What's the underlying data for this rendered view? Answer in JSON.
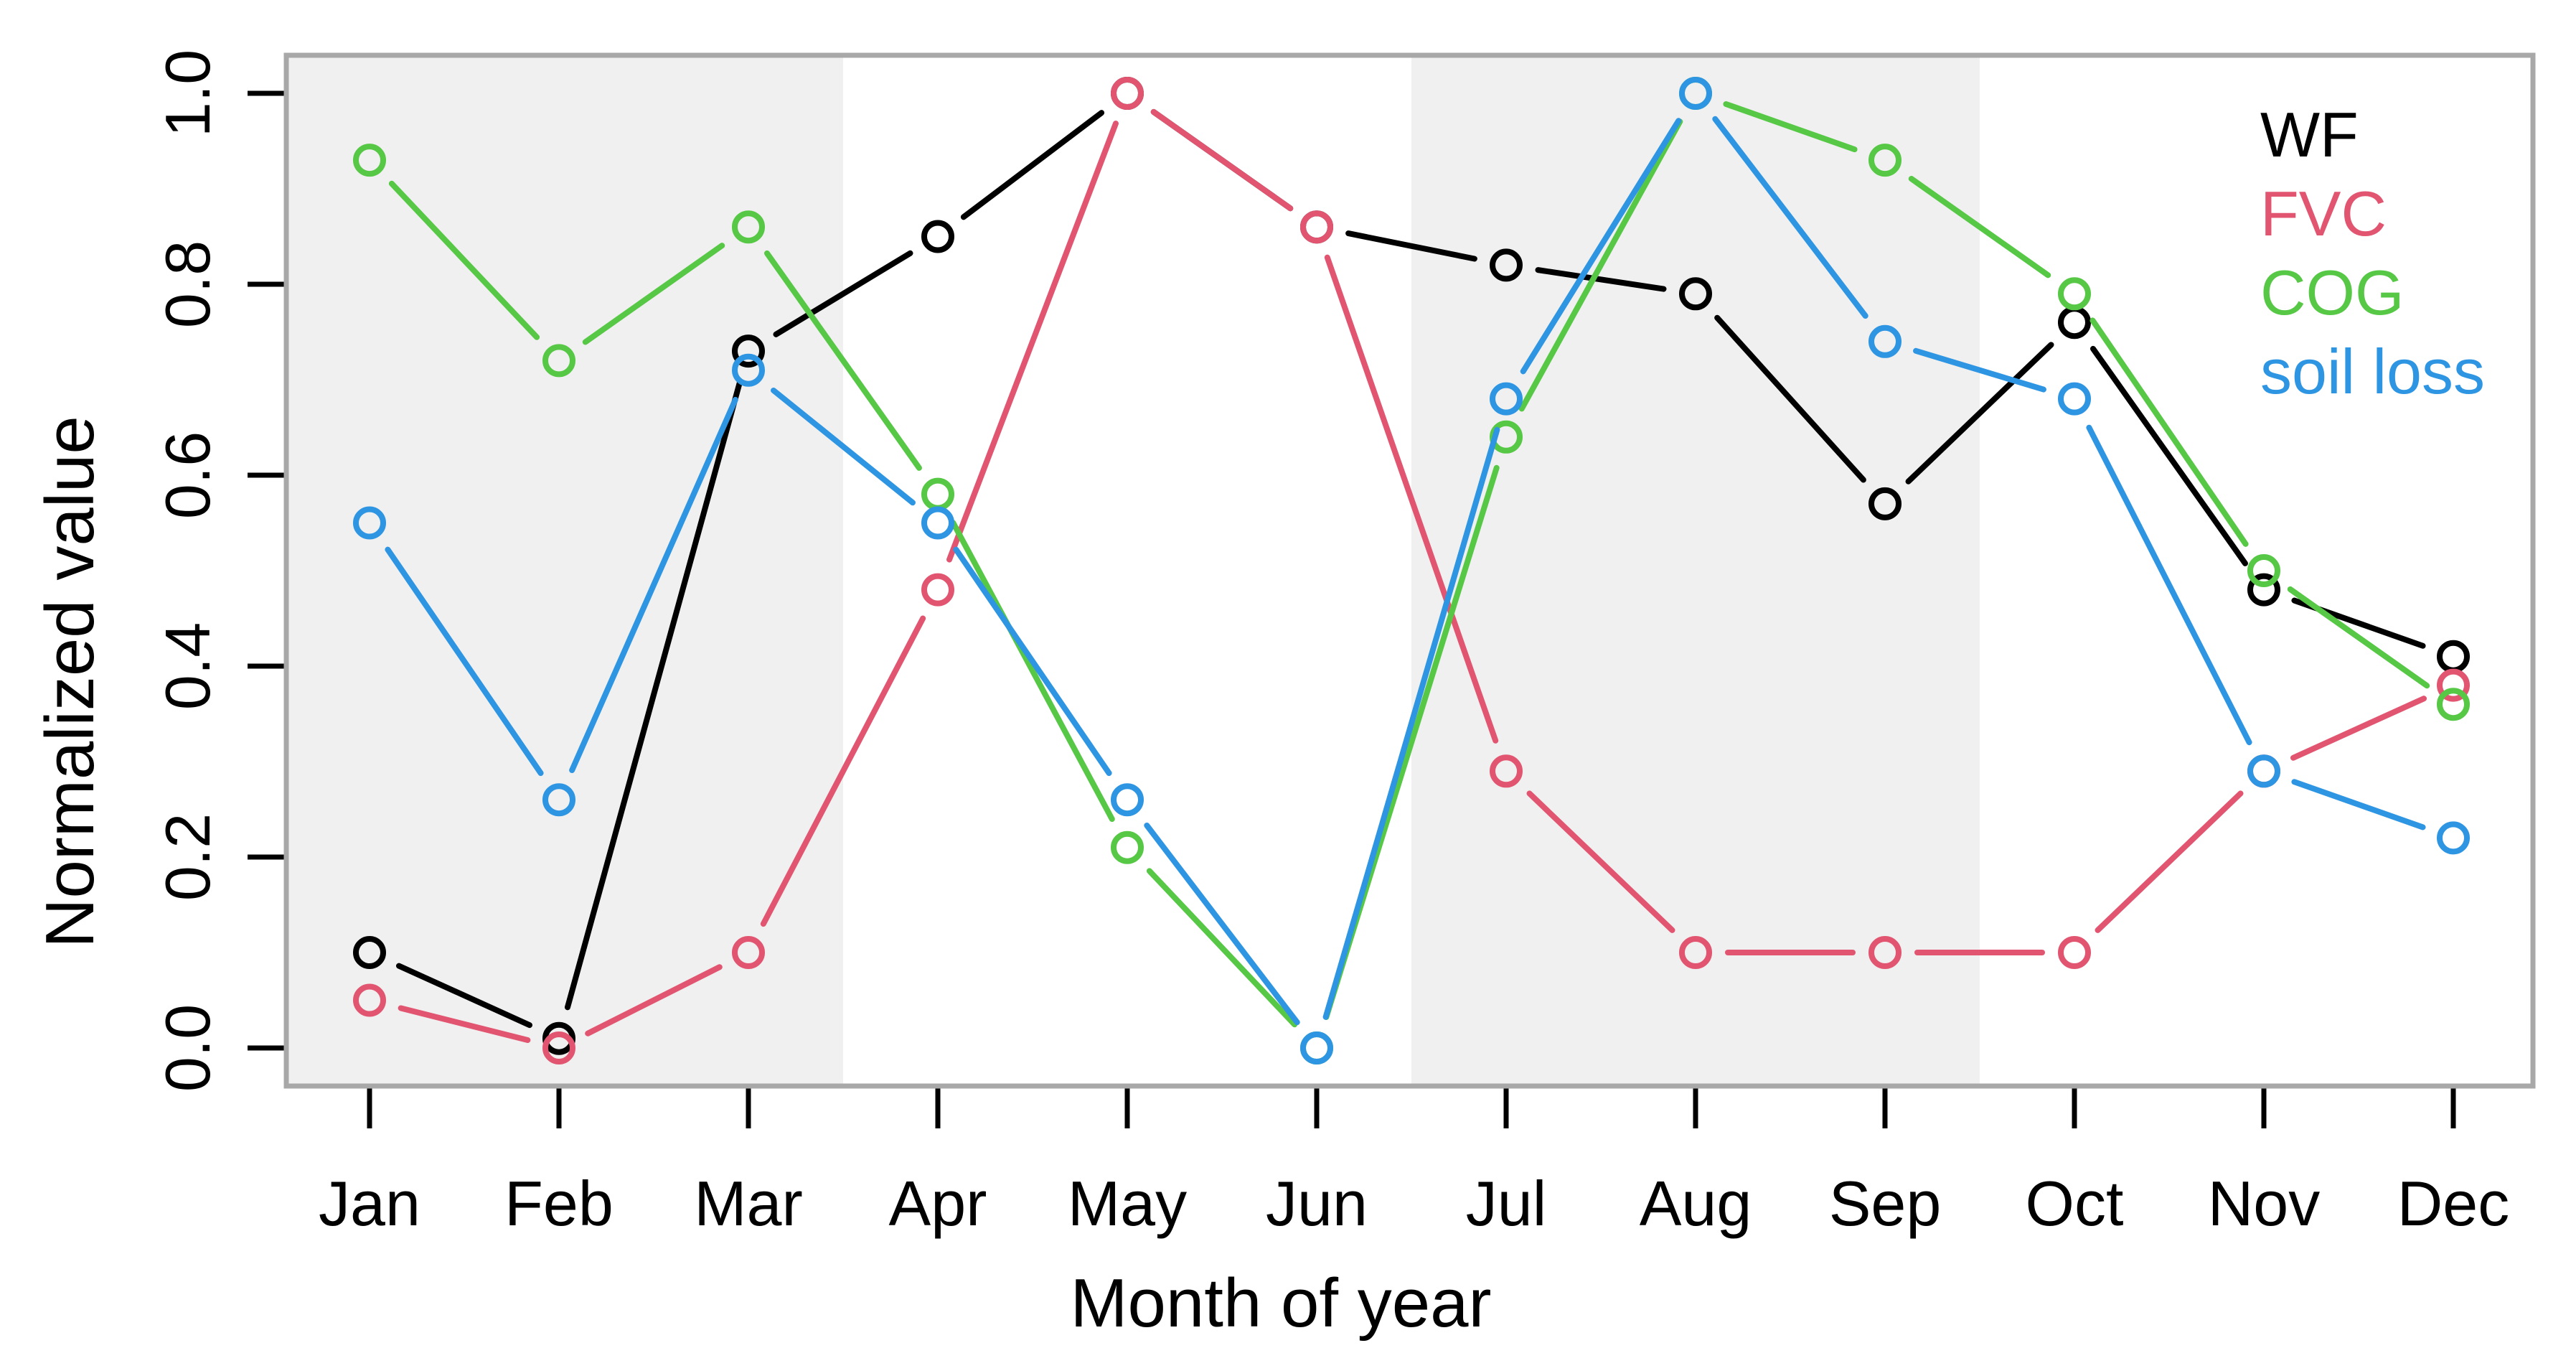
{
  "figure": {
    "background_color": "#ffffff"
  },
  "chart_data": {
    "type": "line",
    "title": "",
    "xlabel": "Month of year",
    "ylabel": "Normalized value",
    "categories": [
      "Jan",
      "Feb",
      "Mar",
      "Apr",
      "May",
      "Jun",
      "Jul",
      "Aug",
      "Sep",
      "Oct",
      "Nov",
      "Dec"
    ],
    "ylim": [
      0.0,
      1.0
    ],
    "yticks": [
      0.0,
      0.2,
      0.4,
      0.6,
      0.8,
      1.0
    ],
    "ytick_labels": [
      "0.0",
      "0.2",
      "0.4",
      "0.6",
      "0.8",
      "1.0"
    ],
    "grid": false,
    "legend_position": "top-right-inside",
    "marker": "open-circle",
    "frame_color": "#a8a8a8",
    "tick_color": "#000000",
    "shaded_band_color": "#f0f0f0",
    "shaded_bands_month_units": [
      {
        "from": 0.56,
        "to": 3.5
      },
      {
        "from": 6.5,
        "to": 9.5
      }
    ],
    "series": [
      {
        "name": "WF",
        "color": "#000000",
        "values": [
          0.1,
          0.01,
          0.73,
          0.85,
          1.0,
          0.86,
          0.82,
          0.79,
          0.57,
          0.76,
          0.48,
          0.41
        ]
      },
      {
        "name": "FVC",
        "color": "#e25570",
        "values": [
          0.05,
          0.0,
          0.1,
          0.48,
          1.0,
          0.86,
          0.29,
          0.1,
          0.1,
          0.1,
          0.29,
          0.38
        ]
      },
      {
        "name": "COG",
        "color": "#56c845",
        "values": [
          0.93,
          0.72,
          0.86,
          0.58,
          0.21,
          0.0,
          0.64,
          1.0,
          0.93,
          0.79,
          0.5,
          0.36
        ]
      },
      {
        "name": "soil loss",
        "color": "#2e95e3",
        "values": [
          0.55,
          0.26,
          0.71,
          0.55,
          0.26,
          0.0,
          0.68,
          1.0,
          0.74,
          0.68,
          0.29,
          0.22
        ]
      }
    ]
  }
}
